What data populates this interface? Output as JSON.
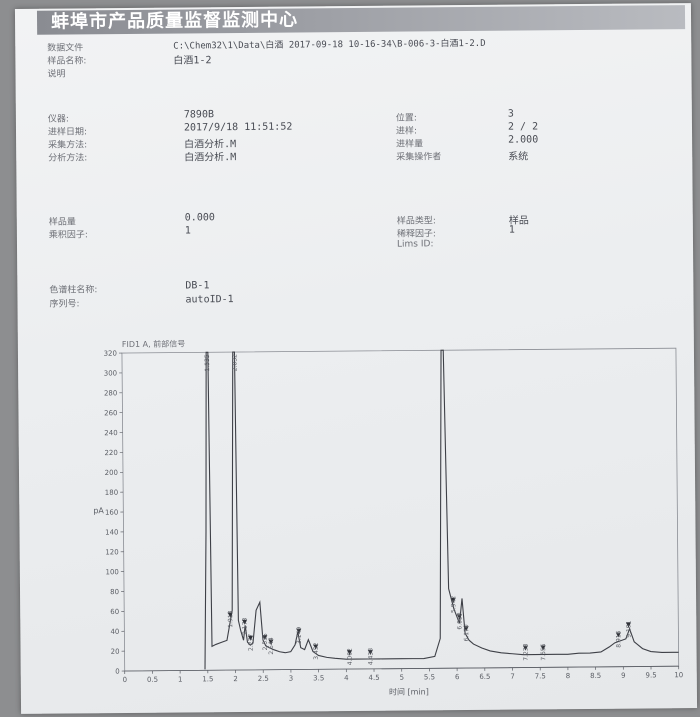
{
  "header": {
    "title": "蚌埠市产品质量监督监测中心"
  },
  "file_info": {
    "data_file_label": "数据文件",
    "data_file_value": "C:\\Chem32\\1\\Data\\白酒 2017-09-18 10-16-34\\B-006-3-白酒1-2.D",
    "sample_name_label": "样品名称:",
    "sample_name_value": "白酒1-2",
    "description_label": "说明"
  },
  "run_info": {
    "instrument_label": "仪器:",
    "instrument_value": "7890B",
    "inject_date_label": "进样日期:",
    "inject_date_value": "2017/9/18 11:51:52",
    "acq_method_label": "采集方法:",
    "acq_method_value": "白酒分析.M",
    "analysis_method_label": "分析方法:",
    "analysis_method_value": "白酒分析.M",
    "position_label": "位置:",
    "position_value": "3",
    "injection_label": "进样:",
    "injection_value": "2 / 2",
    "inj_volume_label": "进样量",
    "inj_volume_value": "2.000",
    "operator_label": "采集操作者",
    "operator_value": "系统"
  },
  "sample_info": {
    "sample_amount_label": "样品量",
    "sample_amount_value": "0.000",
    "multiplier_label": "乘积因子:",
    "multiplier_value": "1",
    "sample_type_label": "样品类型:",
    "sample_type_value": "样品",
    "dilution_label": "稀释因子:",
    "dilution_value": "1",
    "lims_label": "Lims ID:"
  },
  "column_info": {
    "column_name_label": "色谱柱名称:",
    "column_name_value": "DB-1",
    "serial_label": "序列号:",
    "serial_value": "autoID-1"
  },
  "chart_data": {
    "type": "line",
    "title": "FID1 A, 前部信号",
    "xlabel": "时间 [min]",
    "ylabel": "pA",
    "xlim": [
      0,
      10
    ],
    "ylim": [
      0,
      320
    ],
    "x_ticks": [
      "0",
      "0.5",
      "1",
      "1.5",
      "2",
      "2.5",
      "3",
      "3.5",
      "4",
      "4.5",
      "5",
      "5.5",
      "6",
      "6.5",
      "7",
      "7.5",
      "8",
      "8.5",
      "9",
      "9.5",
      "10"
    ],
    "y_ticks": [
      "0",
      "20",
      "40",
      "60",
      "80",
      "100",
      "120",
      "140",
      "160",
      "180",
      "200",
      "220",
      "240",
      "260",
      "280",
      "300",
      "320"
    ],
    "trace": {
      "x": [
        1.45,
        1.49,
        1.52,
        1.55,
        1.58,
        1.65,
        1.75,
        1.85,
        1.95,
        2.0,
        2.03,
        2.06,
        2.1,
        2.15,
        2.18,
        2.22,
        2.27,
        2.32,
        2.38,
        2.45,
        2.5,
        2.55,
        2.62,
        2.7,
        2.8,
        2.9,
        3.0,
        3.08,
        3.13,
        3.18,
        3.25,
        3.32,
        3.4,
        3.5,
        3.65,
        3.8,
        4.0,
        4.2,
        4.4,
        4.6,
        4.8,
        5.0,
        5.2,
        5.4,
        5.6,
        5.7,
        5.76,
        5.8,
        5.86,
        5.95,
        6.05,
        6.1,
        6.15,
        6.22,
        6.3,
        6.45,
        6.6,
        6.8,
        7.0,
        7.2,
        7.4,
        7.6,
        7.8,
        8.0,
        8.2,
        8.4,
        8.6,
        8.75,
        8.85,
        8.95,
        9.05,
        9.12,
        9.2,
        9.35,
        9.5,
        9.7,
        9.9,
        10.0
      ],
      "y": [
        1,
        140,
        320,
        320,
        24,
        26,
        28,
        30,
        60,
        320,
        320,
        50,
        40,
        30,
        45,
        28,
        25,
        27,
        60,
        68,
        30,
        24,
        22,
        20,
        18,
        17,
        18,
        25,
        38,
        22,
        20,
        30,
        18,
        14,
        12,
        11,
        10,
        10,
        10,
        10,
        10,
        10,
        10,
        10,
        12,
        30,
        320,
        320,
        80,
        60,
        45,
        70,
        35,
        28,
        24,
        20,
        17,
        15,
        14,
        13,
        13,
        13,
        13,
        13,
        14,
        14,
        15,
        20,
        24,
        26,
        28,
        38,
        25,
        18,
        15,
        14,
        14,
        14
      ]
    },
    "peaks": [
      {
        "rt": 1.535,
        "label": "1.535"
      },
      {
        "rt": 1.913,
        "label": "1.913"
      },
      {
        "rt": 2.032,
        "label": "2.032"
      },
      {
        "rt": 2.173,
        "label": "2.173"
      },
      {
        "rt": 2.277,
        "label": "2.277"
      },
      {
        "rt": 2.535,
        "label": "2.535"
      },
      {
        "rt": 2.644,
        "label": "2.644"
      },
      {
        "rt": 3.149,
        "label": "3.149"
      },
      {
        "rt": 3.452,
        "label": "3.452"
      },
      {
        "rt": 4.062,
        "label": "4.062"
      },
      {
        "rt": 4.438,
        "label": "4.438"
      },
      {
        "rt": 5.942,
        "label": "5.942"
      },
      {
        "rt": 6.05,
        "label": "6.050"
      },
      {
        "rt": 6.17,
        "label": "6.170"
      },
      {
        "rt": 7.238,
        "label": "7.238"
      },
      {
        "rt": 7.555,
        "label": "7.555"
      },
      {
        "rt": 8.916,
        "label": "8.916"
      },
      {
        "rt": 9.101,
        "label": "9.101"
      }
    ],
    "grid": false,
    "legend": "none"
  },
  "colors": {
    "trace": "#3e4047",
    "axis": "#5c5f66",
    "header_bar": "#8a8c92"
  }
}
